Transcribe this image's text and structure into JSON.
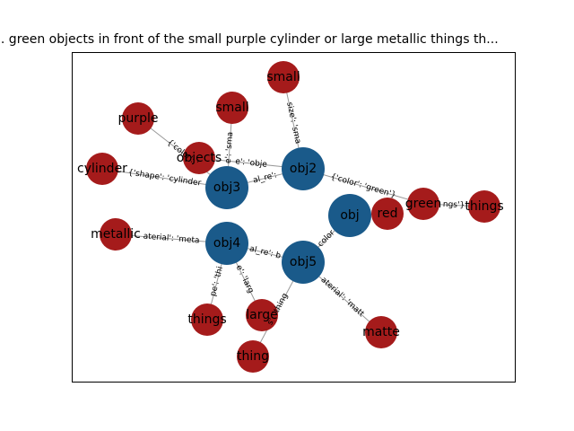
{
  "title": "... green objects in front of the small purple cylinder or large metallic things th...",
  "colors": {
    "hub": "#1a5a8a",
    "leaf": "#a51b1b",
    "edge": "#999999"
  },
  "nodes": [
    {
      "id": "obj",
      "label": "obj",
      "kind": "hub"
    },
    {
      "id": "obj2",
      "label": "obj2",
      "kind": "hub"
    },
    {
      "id": "obj3",
      "label": "obj3",
      "kind": "hub"
    },
    {
      "id": "obj4",
      "label": "obj4",
      "kind": "hub"
    },
    {
      "id": "obj5",
      "label": "obj5",
      "kind": "hub"
    },
    {
      "id": "small_a",
      "label": "small",
      "kind": "leaf"
    },
    {
      "id": "small_b",
      "label": "small",
      "kind": "leaf"
    },
    {
      "id": "purple",
      "label": "purple",
      "kind": "leaf"
    },
    {
      "id": "objects",
      "label": "objects",
      "kind": "leaf"
    },
    {
      "id": "cylinder",
      "label": "cylinder",
      "kind": "leaf"
    },
    {
      "id": "green",
      "label": "green",
      "kind": "leaf"
    },
    {
      "id": "things_a",
      "label": "things",
      "kind": "leaf"
    },
    {
      "id": "red",
      "label": "red",
      "kind": "leaf"
    },
    {
      "id": "metallic",
      "label": "metallic",
      "kind": "leaf"
    },
    {
      "id": "things_b",
      "label": "things",
      "kind": "leaf"
    },
    {
      "id": "large",
      "label": "large",
      "kind": "leaf"
    },
    {
      "id": "thing",
      "label": "thing",
      "kind": "leaf"
    },
    {
      "id": "matte",
      "label": "matte",
      "kind": "leaf"
    }
  ],
  "edges": [
    {
      "from": "obj2",
      "to": "small_a",
      "label": "size': 'sma"
    },
    {
      "from": "obj3",
      "to": "small_b",
      "label": "e': 'sma"
    },
    {
      "from": "obj3",
      "to": "purple",
      "label": "{'color': '"
    },
    {
      "from": "obj3",
      "to": "cylinder",
      "label": "{'shape': 'cylinder"
    },
    {
      "from": "obj3",
      "to": "obj2",
      "label": "al_re': "
    },
    {
      "from": "obj2",
      "to": "objects",
      "label": "e': 'obje"
    },
    {
      "from": "obj2",
      "to": "green",
      "label": "{'color': 'green'}"
    },
    {
      "from": "green",
      "to": "things_a",
      "label": "ngs'}"
    },
    {
      "from": "obj",
      "to": "red",
      "label": ""
    },
    {
      "from": "obj5",
      "to": "obj",
      "label": "color"
    },
    {
      "from": "obj4",
      "to": "metallic",
      "label": "aterial': 'meta"
    },
    {
      "from": "obj4",
      "to": "obj5",
      "label": "al_re': b"
    },
    {
      "from": "obj4",
      "to": "things_b",
      "label": "pe': 'thi"
    },
    {
      "from": "obj4",
      "to": "large",
      "label": "e': 'larg"
    },
    {
      "from": "obj5",
      "to": "thing",
      "label": "s': 'thing"
    },
    {
      "from": "obj5",
      "to": "matte",
      "label": "aterial': 'matt"
    }
  ]
}
